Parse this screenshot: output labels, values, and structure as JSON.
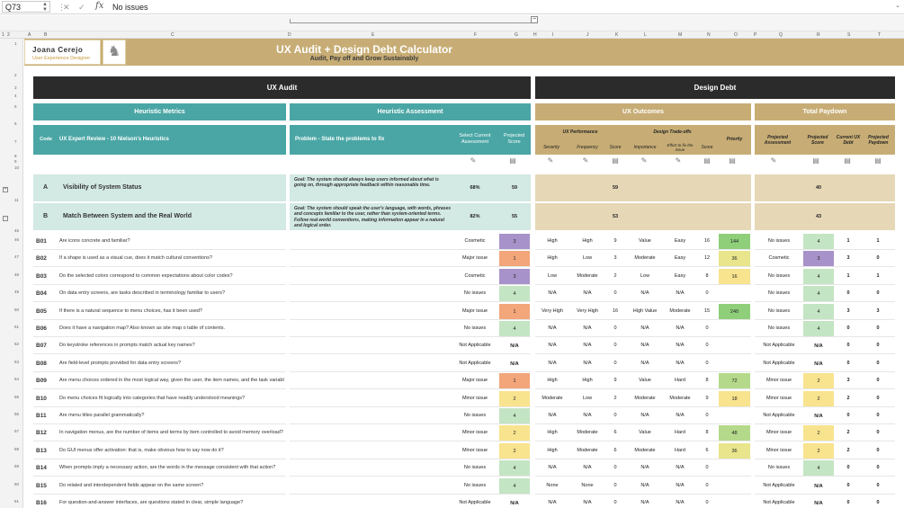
{
  "formula_bar": {
    "cell_ref": "Q73",
    "value": "No issues",
    "fx": "fx"
  },
  "columns": [
    "A",
    "B",
    "C",
    "D",
    "E",
    "F",
    "G",
    "H",
    "I",
    "J",
    "K",
    "L",
    "M",
    "N",
    "O",
    "P",
    "Q",
    "R",
    "S",
    "T"
  ],
  "outline_levels": [
    "1",
    "2"
  ],
  "header": {
    "name": "Joana Cerejo",
    "role": "User Experience Designer",
    "title": "UX Audit + Design Debt Calculator",
    "subtitle": "Audit, Pay off and Grow Sustainably"
  },
  "sections": {
    "ux_audit": "UX Audit",
    "design_debt": "Design Debt",
    "heuristic_metrics": "Heuristic Metrics",
    "heuristic_assessment": "Heuristic Assessment",
    "ux_outcomes": "UX Outcomes",
    "total_paydown": "Total Paydown"
  },
  "col_headers": {
    "code": "Code",
    "review": "UX Expert Review - 10 Nielson's Heuristics",
    "problem": "Problem - State the problems to fix",
    "select": "Select Current Assessment",
    "projected": "Projected Score",
    "ux_performance": "UX Performance",
    "design_tradeoffs": "Design Trade-offs",
    "priority": "Priority",
    "severity": "Severity",
    "frequency": "Frequency",
    "score": "Score",
    "importance": "Importance",
    "effort": "Effort to fix the issue",
    "proj_assess": "Projected Assessment",
    "proj_score": "Projected Score",
    "current_debt": "Current UX Debt",
    "proj_paydown": "Projected Paydown"
  },
  "heuristics": [
    {
      "code": "A",
      "title": "Visibility of System Status",
      "goal": "Goal: The system should always keep users informed about what is going on, through appropriate feedback within reasonable time.",
      "pct": "68%",
      "score": "59",
      "outcome": "59",
      "paydown": "40"
    },
    {
      "code": "B",
      "title": "Match Between System and the Real World",
      "goal": "Goal: The system should speak the user's language, with words, phrases and concepts familiar to the user, rather than system-oriented terms. Follow real-world conventions, making information appear in a natural and logical order.",
      "pct": "82%",
      "score": "55",
      "outcome": "53",
      "paydown": "43"
    }
  ],
  "rows": [
    {
      "row": "46",
      "code": "B01",
      "q": "Are icons concrete and familiar?",
      "assess": "Cosmetic",
      "proj": "3",
      "sev": "High",
      "freq": "High",
      "s1": "9",
      "imp": "Value",
      "eff": "Easy",
      "s2": "16",
      "pri": "144",
      "passess": "No issues",
      "pscore": "4",
      "debt": "1",
      "pay": "1"
    },
    {
      "row": "47",
      "code": "B02",
      "q": "If a shape is used as a visual cue, does it match cultural conventions?",
      "assess": "Major issue",
      "proj": "1",
      "sev": "High",
      "freq": "Low",
      "s1": "3",
      "imp": "Moderate",
      "eff": "Easy",
      "s2": "12",
      "pri": "36",
      "passess": "Cosmetic",
      "pscore": "3",
      "debt": "3",
      "pay": "0"
    },
    {
      "row": "48",
      "code": "B03",
      "q": "Do the selected colors correspond to common expectations about color codes?",
      "assess": "Cosmetic",
      "proj": "3",
      "sev": "Low",
      "freq": "Moderate",
      "s1": "2",
      "imp": "Low",
      "eff": "Easy",
      "s2": "8",
      "pri": "16",
      "passess": "No issues",
      "pscore": "4",
      "debt": "1",
      "pay": "1"
    },
    {
      "row": "49",
      "code": "B04",
      "q": "On data entry screens, are tasks described in terminology familiar to users?",
      "assess": "No issues",
      "proj": "4",
      "sev": "N/A",
      "freq": "N/A",
      "s1": "0",
      "imp": "N/A",
      "eff": "N/A",
      "s2": "0",
      "pri": "",
      "passess": "No issues",
      "pscore": "4",
      "debt": "0",
      "pay": "0"
    },
    {
      "row": "50",
      "code": "B05",
      "q": "If there is a natural sequence to menu choices, has it been used?",
      "assess": "Major issue",
      "proj": "1",
      "sev": "Very High",
      "freq": "Very High",
      "s1": "16",
      "imp": "High Value",
      "eff": "Moderate",
      "s2": "15",
      "pri": "240",
      "passess": "No issues",
      "pscore": "4",
      "debt": "3",
      "pay": "3"
    },
    {
      "row": "51",
      "code": "B06",
      "q": "Does it have a navigation map? Also known as site map o table of contents.",
      "assess": "No issues",
      "proj": "4",
      "sev": "N/A",
      "freq": "N/A",
      "s1": "0",
      "imp": "N/A",
      "eff": "N/A",
      "s2": "0",
      "pri": "",
      "passess": "No issues",
      "pscore": "4",
      "debt": "0",
      "pay": "0"
    },
    {
      "row": "52",
      "code": "B07",
      "q": "Do keystroke references in prompts match actual key names?",
      "assess": "Not Applicable",
      "proj": "N/A",
      "sev": "N/A",
      "freq": "N/A",
      "s1": "0",
      "imp": "N/A",
      "eff": "N/A",
      "s2": "0",
      "pri": "",
      "passess": "Not Applicable",
      "pscore": "N/A",
      "debt": "0",
      "pay": "0"
    },
    {
      "row": "53",
      "code": "B08",
      "q": "Are field-level prompts provided for data entry screens?",
      "assess": "Not Applicable",
      "proj": "N/A",
      "sev": "N/A",
      "freq": "N/A",
      "s1": "0",
      "imp": "N/A",
      "eff": "N/A",
      "s2": "0",
      "pri": "",
      "passess": "Not Applicable",
      "pscore": "N/A",
      "debt": "0",
      "pay": "0"
    },
    {
      "row": "54",
      "code": "B09",
      "q": "Are menu choices ordered in the most logical way, given the user, the item names, and the task variables?",
      "assess": "Major issue",
      "proj": "1",
      "sev": "High",
      "freq": "High",
      "s1": "9",
      "imp": "Value",
      "eff": "Hard",
      "s2": "8",
      "pri": "72",
      "passess": "Minor issue",
      "pscore": "2",
      "debt": "3",
      "pay": "0"
    },
    {
      "row": "55",
      "code": "B10",
      "q": "Do menu choices fit logically into categories that have readily understood meanings?",
      "assess": "Minor issue",
      "proj": "2",
      "sev": "Moderate",
      "freq": "Low",
      "s1": "2",
      "imp": "Moderate",
      "eff": "Moderate",
      "s2": "9",
      "pri": "18",
      "passess": "Minor issue",
      "pscore": "2",
      "debt": "2",
      "pay": "0"
    },
    {
      "row": "56",
      "code": "B11",
      "q": "Are menu titles parallel grammatically?",
      "assess": "No issues",
      "proj": "4",
      "sev": "N/A",
      "freq": "N/A",
      "s1": "0",
      "imp": "N/A",
      "eff": "N/A",
      "s2": "0",
      "pri": "",
      "passess": "Not Applicable",
      "pscore": "N/A",
      "debt": "0",
      "pay": "0"
    },
    {
      "row": "57",
      "code": "B12",
      "q": "In navigation menus, are the number of items and terms by item controlled to avoid memory overload?",
      "assess": "Minor issue",
      "proj": "2",
      "sev": "High",
      "freq": "Moderate",
      "s1": "6",
      "imp": "Value",
      "eff": "Hard",
      "s2": "8",
      "pri": "48",
      "passess": "Minor issue",
      "pscore": "2",
      "debt": "2",
      "pay": "0"
    },
    {
      "row": "58",
      "code": "B13",
      "q": "Do GUI menus offer activation: that is, make obvious how to say now do it?",
      "assess": "Minor issue",
      "proj": "2",
      "sev": "High",
      "freq": "Moderate",
      "s1": "6",
      "imp": "Moderate",
      "eff": "Hard",
      "s2": "6",
      "pri": "36",
      "passess": "Minor issue",
      "pscore": "2",
      "debt": "2",
      "pay": "0"
    },
    {
      "row": "59",
      "code": "B14",
      "q": "When prompts imply a necessary action, are the words in the message consistent with that action?",
      "assess": "No issues",
      "proj": "4",
      "sev": "N/A",
      "freq": "N/A",
      "s1": "0",
      "imp": "N/A",
      "eff": "N/A",
      "s2": "0",
      "pri": "",
      "passess": "No issues",
      "pscore": "4",
      "debt": "0",
      "pay": "0"
    },
    {
      "row": "60",
      "code": "B15",
      "q": "Do related and interdependent fields appear on the same screen?",
      "assess": "No issues",
      "proj": "4",
      "sev": "None",
      "freq": "None",
      "s1": "0",
      "imp": "N/A",
      "eff": "N/A",
      "s2": "0",
      "pri": "",
      "passess": "Not Applicable",
      "pscore": "N/A",
      "debt": "0",
      "pay": "0"
    },
    {
      "row": "61",
      "code": "B16",
      "q": "For question-and-answer interfaces, are questions stated in clear, simple language?",
      "assess": "Not Applicable",
      "proj": "N/A",
      "sev": "N/A",
      "freq": "N/A",
      "s1": "0",
      "imp": "N/A",
      "eff": "N/A",
      "s2": "0",
      "pri": "",
      "passess": "Not Applicable",
      "pscore": "N/A",
      "debt": "0",
      "pay": "0"
    }
  ],
  "colors": {
    "dark": "#2b2b2b",
    "teal": "#4aa6a5",
    "gold": "#c7ad75",
    "light_teal": "#d3e9e3",
    "light_gold": "#e6d8b7",
    "purple": "#a792c9",
    "orange": "#f2a67a",
    "yellow": "#f8e38e",
    "green": "#c4e5c3",
    "green_dark": "#8fcf7a"
  }
}
